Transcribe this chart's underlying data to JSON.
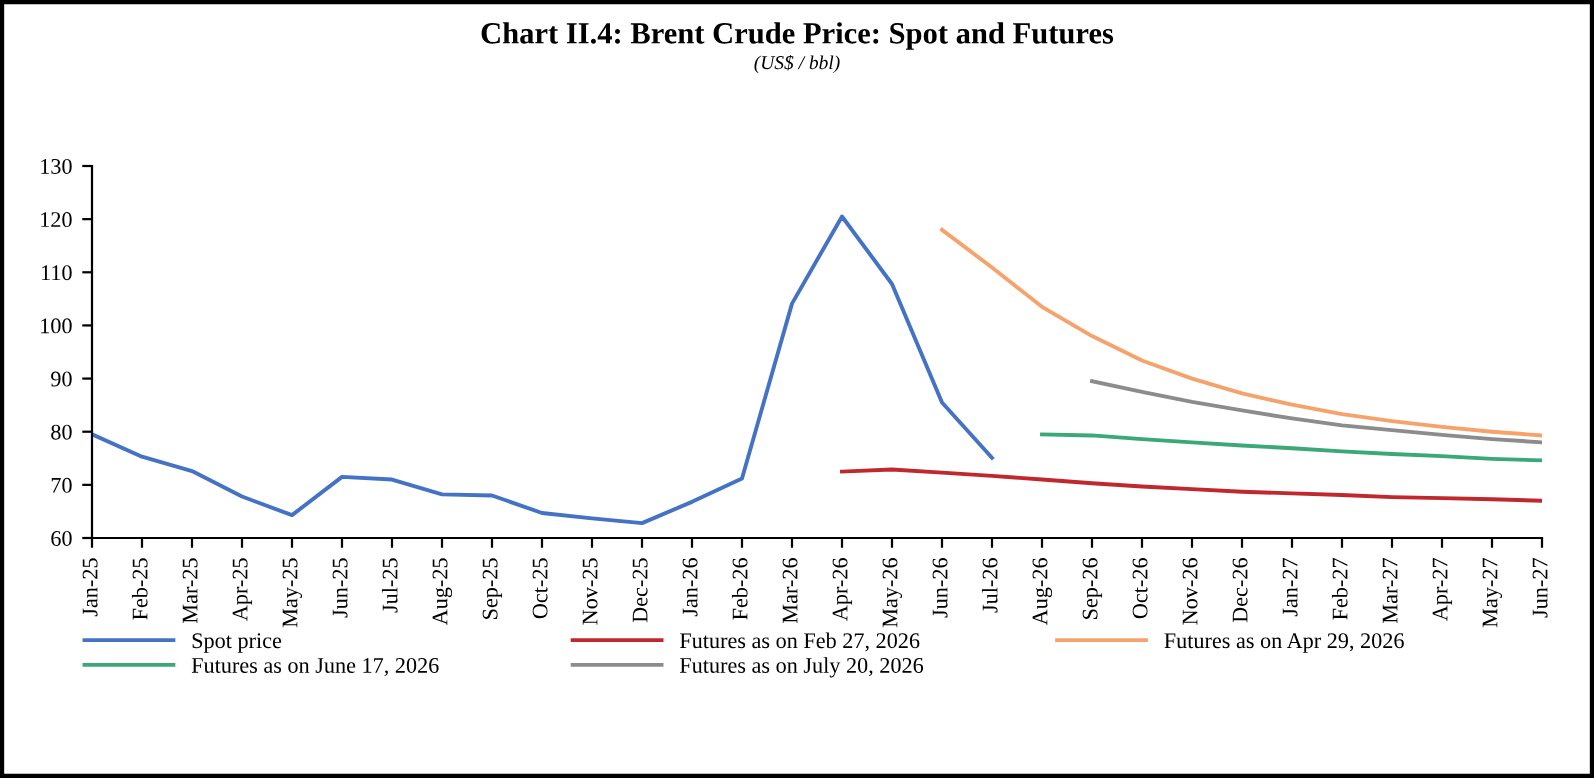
{
  "chart_data": {
    "type": "line",
    "title": "Chart II.4: Brent Crude Price: Spot and Futures",
    "subtitle": "(US$ / bbl)",
    "categories": [
      "Jan-25",
      "Feb-25",
      "Mar-25",
      "Apr-25",
      "May-25",
      "Jun-25",
      "Jul-25",
      "Aug-25",
      "Sep-25",
      "Oct-25",
      "Nov-25",
      "Dec-25",
      "Jan-26",
      "Feb-26",
      "Mar-26",
      "Apr-26",
      "May-26",
      "Jun-26",
      "Jul-26",
      "Aug-26",
      "Sep-26",
      "Oct-26",
      "Nov-26",
      "Dec-26",
      "Jan-27",
      "Feb-27",
      "Mar-27",
      "Apr-27",
      "May-27",
      "Jun-27"
    ],
    "series": [
      {
        "name": "Spot price",
        "color": "#4472c4",
        "values": [
          79.5,
          75.3,
          72.6,
          67.8,
          64.3,
          71.5,
          71.0,
          68.2,
          68.0,
          64.7,
          63.7,
          62.8,
          66.8,
          71.2,
          104.1,
          120.5,
          107.8,
          85.5,
          75.1,
          null,
          null,
          null,
          null,
          null,
          null,
          null,
          null,
          null,
          null,
          null
        ]
      },
      {
        "name": "Futures as on Feb 27, 2026",
        "color": "#c0282d",
        "values": [
          null,
          null,
          null,
          null,
          null,
          null,
          null,
          null,
          null,
          null,
          null,
          null,
          null,
          null,
          null,
          72.5,
          72.9,
          72.3,
          71.7,
          71.0,
          70.3,
          69.7,
          69.2,
          68.7,
          68.4,
          68.1,
          67.7,
          67.5,
          67.3,
          67.0
        ]
      },
      {
        "name": "Futures as on Apr 29, 2026",
        "color": "#f5a36b",
        "values": [
          null,
          null,
          null,
          null,
          null,
          null,
          null,
          null,
          null,
          null,
          null,
          null,
          null,
          null,
          null,
          null,
          null,
          118.0,
          110.9,
          103.5,
          98.0,
          93.4,
          90.0,
          87.2,
          85.1,
          83.3,
          82.0,
          80.9,
          80.0,
          79.3
        ]
      },
      {
        "name": "Futures as on June 17, 2026",
        "color": "#3aa877",
        "values": [
          null,
          null,
          null,
          null,
          null,
          null,
          null,
          null,
          null,
          null,
          null,
          null,
          null,
          null,
          null,
          null,
          null,
          null,
          null,
          79.5,
          79.3,
          78.6,
          78.0,
          77.4,
          76.9,
          76.3,
          75.8,
          75.4,
          74.9,
          74.6
        ]
      },
      {
        "name": "Futures as on July 20, 2026",
        "color": "#8c8c8c",
        "values": [
          null,
          null,
          null,
          null,
          null,
          null,
          null,
          null,
          null,
          null,
          null,
          null,
          null,
          null,
          null,
          null,
          null,
          null,
          null,
          null,
          89.5,
          87.5,
          85.6,
          84.0,
          82.5,
          81.2,
          80.3,
          79.4,
          78.6,
          78.0
        ]
      }
    ],
    "ylim": [
      60,
      130
    ],
    "yticks": [
      60,
      70,
      80,
      90,
      100,
      110,
      120,
      130
    ],
    "grid": false,
    "legend": "bottom",
    "marker": "none",
    "line_style": "solid"
  }
}
